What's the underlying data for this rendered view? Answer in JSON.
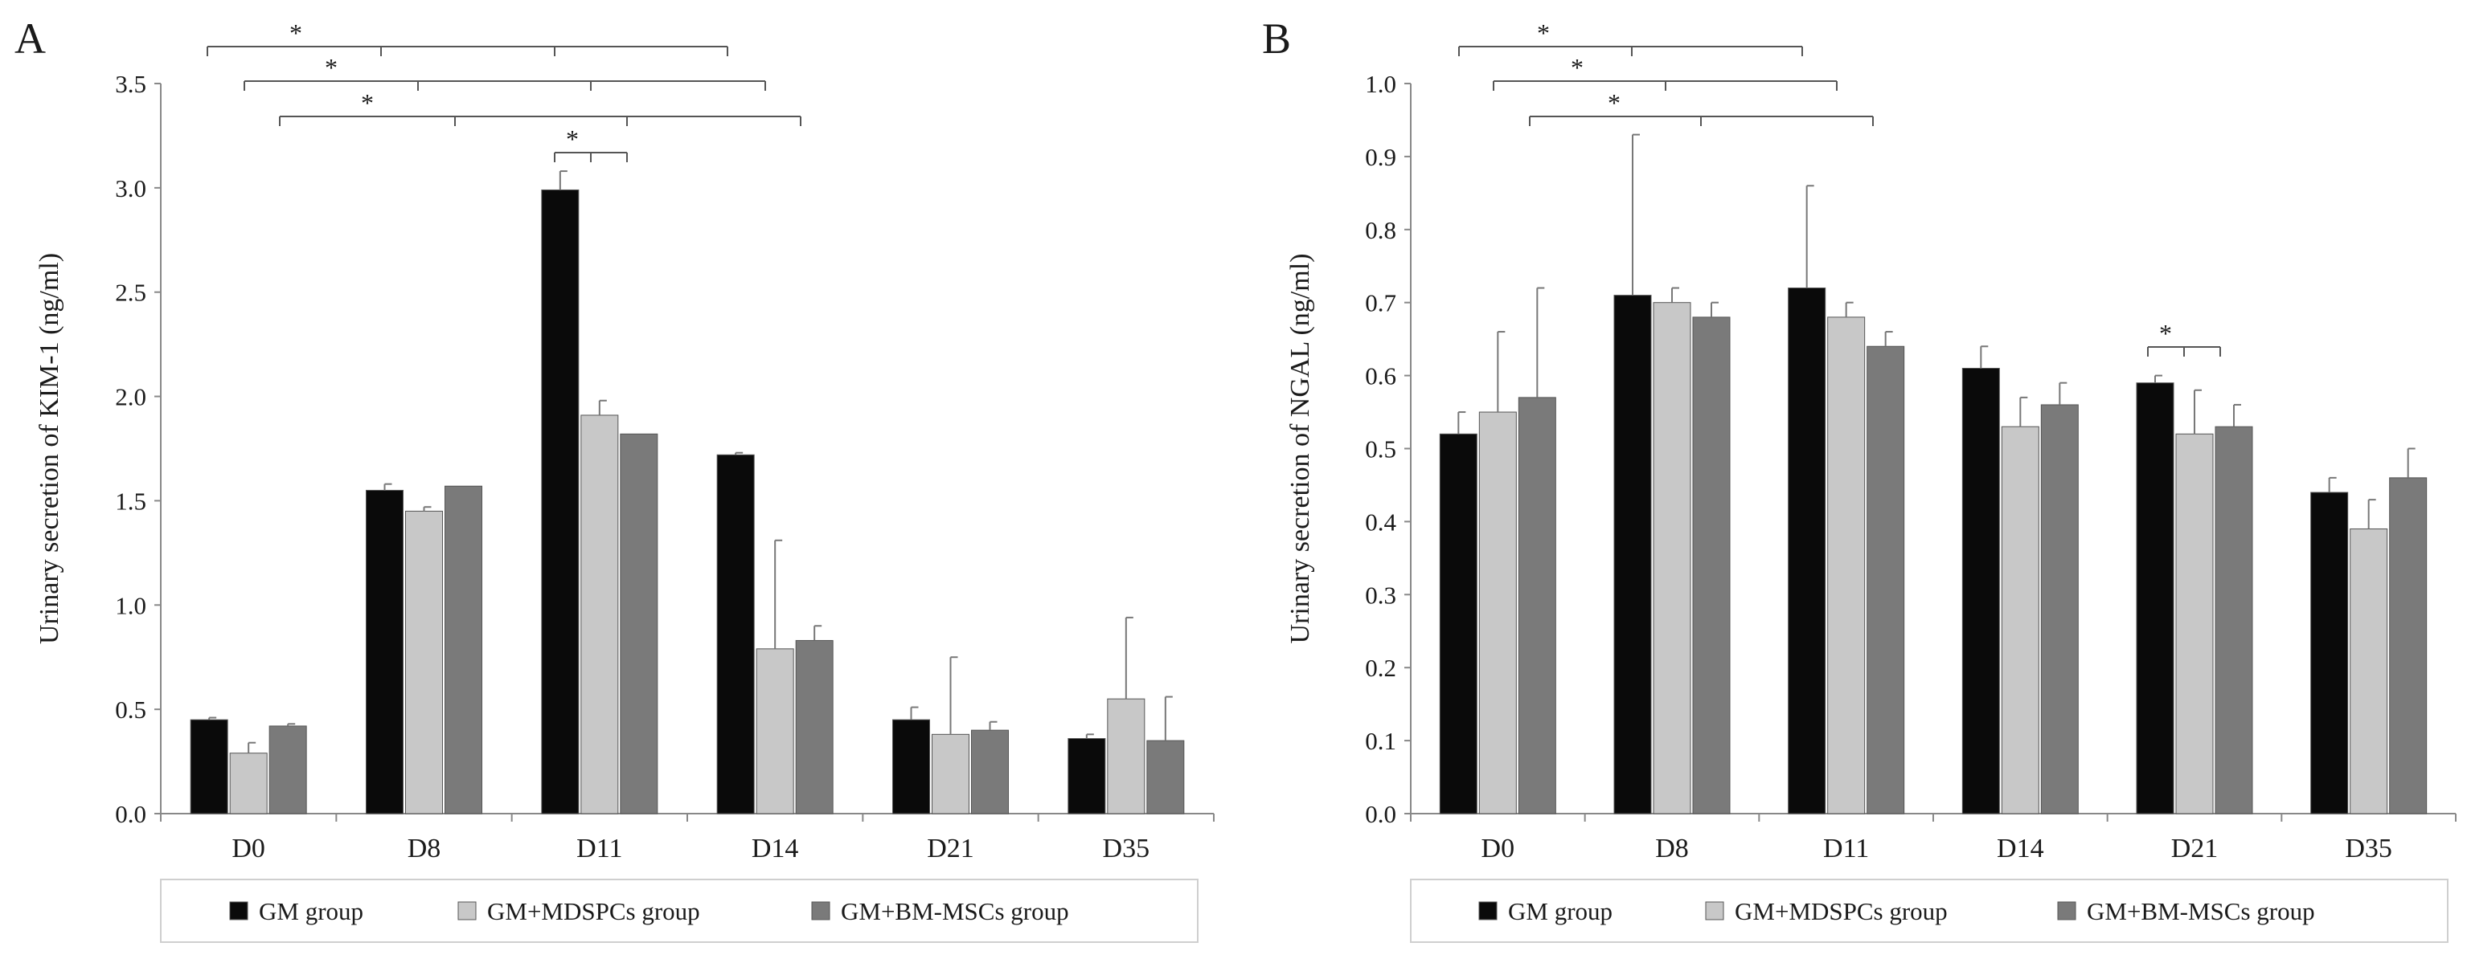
{
  "legend": {
    "items": [
      {
        "name": "GM group",
        "color": "#0a0a0a"
      },
      {
        "name": "GM+MDSPCs group",
        "color": "#c8c8c8"
      },
      {
        "name": "GM+BM-MSCs group",
        "color": "#7a7a7a"
      }
    ]
  },
  "chart_data": [
    {
      "panel": "A",
      "type": "bar",
      "title": "",
      "xlabel": "",
      "ylabel": "Urinary secretion of KIM-1 (ng/ml)",
      "ylim": [
        0,
        3.5
      ],
      "yticks": [
        "0.0",
        "0.5",
        "1.0",
        "1.5",
        "2.0",
        "2.5",
        "3.0",
        "3.5"
      ],
      "categories": [
        "D0",
        "D8",
        "D11",
        "D14",
        "D21",
        "D35"
      ],
      "series": [
        {
          "name": "GM group",
          "values": [
            0.45,
            1.55,
            2.99,
            1.72,
            0.45,
            0.36
          ],
          "errors": [
            0.01,
            0.03,
            0.09,
            0.01,
            0.06,
            0.02
          ]
        },
        {
          "name": "GM+MDSPCs group",
          "values": [
            0.29,
            1.45,
            1.91,
            0.79,
            0.38,
            0.55
          ],
          "errors": [
            0.05,
            0.02,
            0.07,
            0.52,
            0.37,
            0.39
          ]
        },
        {
          "name": "GM+BM-MSCs group",
          "values": [
            0.42,
            1.57,
            1.82,
            0.83,
            0.4,
            0.35
          ],
          "errors": [
            0.01,
            0.0,
            0.0,
            0.07,
            0.04,
            0.21
          ]
        }
      ],
      "significance": [
        {
          "label": "*",
          "from": "D0",
          "to": [
            "D11",
            "D14"
          ],
          "series": "GM group"
        },
        {
          "label": "*",
          "from": "D0",
          "to": [
            "D11",
            "D14"
          ],
          "series": "GM+MDSPCs group"
        },
        {
          "label": "*",
          "from": "D0",
          "to": [
            "D11",
            "D14"
          ],
          "series": "GM+BM-MSCs group"
        },
        {
          "label": "*",
          "from": "D11",
          "to": [
            "D11"
          ],
          "series": "GM group vs GM+MDSPCs/GM+BM-MSCs"
        }
      ]
    },
    {
      "panel": "B",
      "type": "bar",
      "title": "",
      "xlabel": "",
      "ylabel": "Urinary secretion of NGAL (ng/ml)",
      "ylim": [
        0,
        1.0
      ],
      "yticks": [
        "0.0",
        "0.1",
        "0.2",
        "0.3",
        "0.4",
        "0.5",
        "0.6",
        "0.7",
        "0.8",
        "0.9",
        "1.0"
      ],
      "categories": [
        "D0",
        "D8",
        "D11",
        "D14",
        "D21",
        "D35"
      ],
      "series": [
        {
          "name": "GM group",
          "values": [
            0.52,
            0.71,
            0.72,
            0.61,
            0.59,
            0.44
          ],
          "errors": [
            0.03,
            0.22,
            0.14,
            0.03,
            0.01,
            0.02
          ]
        },
        {
          "name": "GM+MDSPCs group",
          "values": [
            0.55,
            0.7,
            0.68,
            0.53,
            0.52,
            0.39
          ],
          "errors": [
            0.11,
            0.02,
            0.02,
            0.04,
            0.06,
            0.04
          ]
        },
        {
          "name": "GM+BM-MSCs group",
          "values": [
            0.57,
            0.68,
            0.64,
            0.56,
            0.53,
            0.46
          ],
          "errors": [
            0.15,
            0.02,
            0.02,
            0.03,
            0.03,
            0.04
          ]
        }
      ],
      "significance": [
        {
          "label": "*",
          "from": "D0",
          "to": [
            "D8",
            "D11"
          ],
          "series": "GM group"
        },
        {
          "label": "*",
          "from": "D0",
          "to": [
            "D8",
            "D11"
          ],
          "series": "GM+MDSPCs group"
        },
        {
          "label": "*",
          "from": "D0",
          "to": [
            "D8",
            "D11"
          ],
          "series": "GM+BM-MSCs group"
        },
        {
          "label": "*",
          "from": "D21",
          "to": [
            "D21"
          ],
          "series": "GM group vs GM+MDSPCs/GM+BM-MSCs"
        }
      ]
    }
  ]
}
